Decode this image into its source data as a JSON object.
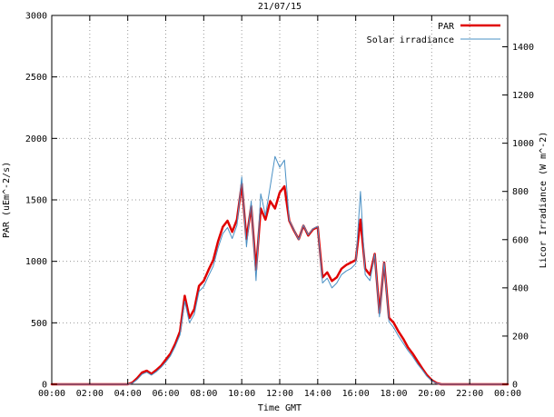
{
  "chart_data": {
    "type": "line",
    "title": "21/07/15",
    "xlabel": "Time GMT",
    "ylabel_left": "PAR (uEm^-2/s)",
    "ylabel_right": "Licor Irradiance (W m^-2)",
    "grid": true,
    "legend_position": "top-right",
    "x_range_hours": [
      0,
      24
    ],
    "x_start_hours": 0,
    "x_step_hours": 0.25,
    "x_tick_hours": [
      0,
      2,
      4,
      6,
      8,
      10,
      12,
      14,
      16,
      18,
      20,
      22,
      24
    ],
    "x_tick_labels": [
      "00:00",
      "02:00",
      "04:00",
      "06:00",
      "08:00",
      "10:00",
      "12:00",
      "14:00",
      "16:00",
      "18:00",
      "20:00",
      "22:00",
      "00:00"
    ],
    "y_left_range": [
      0,
      3000
    ],
    "y_left_ticks": [
      0,
      500,
      1000,
      1500,
      2000,
      2500,
      3000
    ],
    "y_right_range": [
      0,
      1530
    ],
    "y_right_ticks": [
      0,
      200,
      400,
      600,
      800,
      1000,
      1200,
      1400
    ],
    "grid_color": "#9a9a9a",
    "border_color": "#000000",
    "series": [
      {
        "name": "PAR",
        "axis": "left",
        "color": "#e00000",
        "line_width": 2.5,
        "values": [
          0,
          0,
          0,
          0,
          0,
          0,
          0,
          0,
          0,
          0,
          0,
          0,
          0,
          0,
          0,
          0,
          0,
          15,
          50,
          95,
          110,
          85,
          115,
          150,
          200,
          250,
          330,
          430,
          720,
          540,
          610,
          800,
          840,
          930,
          1010,
          1160,
          1280,
          1330,
          1240,
          1340,
          1630,
          1180,
          1450,
          930,
          1430,
          1340,
          1490,
          1430,
          1560,
          1610,
          1330,
          1250,
          1180,
          1290,
          1210,
          1260,
          1280,
          870,
          910,
          840,
          870,
          940,
          970,
          990,
          1010,
          1340,
          940,
          890,
          1060,
          580,
          990,
          540,
          500,
          430,
          370,
          300,
          250,
          190,
          130,
          75,
          35,
          10,
          0,
          0,
          0,
          0,
          0,
          0,
          0,
          0,
          0,
          0,
          0,
          0,
          0,
          0,
          0
        ]
      },
      {
        "name": "Solar irradiance",
        "axis": "right",
        "color": "#4a90c4",
        "line_width": 1,
        "values": [
          0,
          0,
          0,
          0,
          0,
          0,
          0,
          0,
          0,
          0,
          0,
          0,
          0,
          0,
          0,
          0,
          0,
          5,
          20,
          42,
          50,
          38,
          52,
          70,
          92,
          118,
          158,
          205,
          345,
          255,
          290,
          385,
          405,
          450,
          490,
          565,
          625,
          650,
          605,
          660,
          860,
          570,
          760,
          430,
          790,
          700,
          820,
          945,
          900,
          930,
          680,
          640,
          600,
          660,
          620,
          645,
          655,
          420,
          440,
          400,
          420,
          455,
          470,
          480,
          500,
          800,
          455,
          430,
          540,
          280,
          505,
          260,
          235,
          200,
          170,
          140,
          115,
          85,
          60,
          33,
          15,
          4,
          0,
          0,
          0,
          0,
          0,
          0,
          0,
          0,
          0,
          0,
          0,
          0,
          0,
          0,
          0
        ]
      }
    ]
  }
}
